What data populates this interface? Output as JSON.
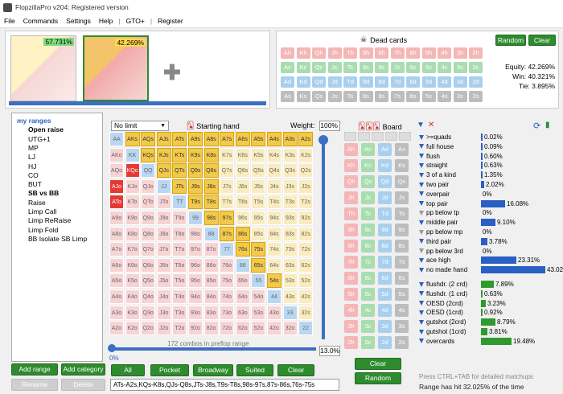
{
  "window": {
    "title": "FlopzillaPro v204: Registered version"
  },
  "menu": [
    "File",
    "Commands",
    "Settings",
    "Help",
    "|",
    "GTO+",
    "|",
    "Register"
  ],
  "top": {
    "range1_pct": "57.731%",
    "range2_pct": "42.269%"
  },
  "dead": {
    "title": "Dead cards",
    "random": "Random",
    "clear": "Clear",
    "rows": [
      [
        "Ah",
        "Kh",
        "Qh",
        "Jh",
        "Th",
        "9h",
        "8h",
        "7h",
        "6h",
        "5h",
        "4h",
        "3h",
        "2h"
      ],
      [
        "Ac",
        "Kc",
        "Qc",
        "Jc",
        "Tc",
        "9c",
        "8c",
        "7c",
        "6c",
        "5c",
        "4c",
        "3c",
        "2c"
      ],
      [
        "Ad",
        "Kd",
        "Qd",
        "Jd",
        "Td",
        "9d",
        "8d",
        "7d",
        "6d",
        "5d",
        "4d",
        "3d",
        "2d"
      ],
      [
        "As",
        "Ks",
        "Qs",
        "Js",
        "Ts",
        "9s",
        "8s",
        "7s",
        "6s",
        "5s",
        "4s",
        "3s",
        "2s"
      ]
    ],
    "equity": "Equity: 42.269%",
    "win": "Win: 40.321%",
    "tie": "Tie: 3.895%"
  },
  "ranges": {
    "items": [
      "my ranges",
      "Open raise",
      "UTG+1",
      "MP",
      "LJ",
      "HJ",
      "CO",
      "BUT",
      "SB vs BB",
      "Raise",
      "Limp Call",
      "Limp ReRaise",
      "Limp Fold",
      "BB Isolate SB Limp"
    ]
  },
  "controls": {
    "limit": "No limit",
    "starting_hand": "Starting hand",
    "weight_label": "Weight:",
    "weight": "100%",
    "board": "Board",
    "combos": "172 combos in preflop range",
    "slider_pct": "0%",
    "range_pct": "13.0%"
  },
  "buttons": {
    "add_range": "Add range",
    "add_category": "Add category",
    "rename": "Rename",
    "delete": "Delete",
    "all": "All",
    "pocket": "Pocket",
    "broadway": "Broadway",
    "suited": "Suited",
    "clear": "Clear",
    "board_clear": "Clear",
    "board_random": "Random"
  },
  "range_text": "ATs-A2s,KQs-K8s,QJs-Q8s,JTs-J8s,T9s-T8s,98s-97s,87s-86s,76s-75s",
  "stats": [
    {
      "label": ">=quads",
      "val": "0.02%",
      "w": 1,
      "c": "blue"
    },
    {
      "label": "full house",
      "val": "0.09%",
      "w": 1,
      "c": "blue"
    },
    {
      "label": "flush",
      "val": "0.60%",
      "w": 1,
      "c": "blue"
    },
    {
      "label": "straight",
      "val": "0.63%",
      "w": 1,
      "c": "blue"
    },
    {
      "label": "3 of a kind",
      "val": "1.35%",
      "w": 1,
      "c": "blue"
    },
    {
      "label": "two pair",
      "val": "2.02%",
      "w": 2,
      "c": "blue"
    },
    {
      "label": "overpair",
      "val": "0%",
      "w": 0,
      "c": "blue"
    },
    {
      "label": "top pair",
      "val": "16.08%",
      "w": 15,
      "c": "blue"
    },
    {
      "label": "pp below tp",
      "val": "0%",
      "w": 0,
      "c": "grey"
    },
    {
      "label": "middle pair",
      "val": "9.10%",
      "w": 9,
      "c": "blue"
    },
    {
      "label": "pp below mp",
      "val": "0%",
      "w": 0,
      "c": "grey"
    },
    {
      "label": "third pair",
      "val": "3.78%",
      "w": 4,
      "c": "blue"
    },
    {
      "label": "pp below 3rd",
      "val": "0%",
      "w": 0,
      "c": "grey"
    },
    {
      "label": "ace high",
      "val": "23.31%",
      "w": 22,
      "c": "blue"
    },
    {
      "label": "no made hand",
      "val": "43.02%",
      "w": 40,
      "c": "blue"
    },
    {
      "label": "flushdr. (2 crd)",
      "val": "7.89%",
      "w": 8,
      "c": "green"
    },
    {
      "label": "flushdr. (1 crd)",
      "val": "0.63%",
      "w": 1,
      "c": "green"
    },
    {
      "label": "OESD (2crd)",
      "val": "3.23%",
      "w": 3,
      "c": "green"
    },
    {
      "label": "OESD (1crd)",
      "val": "0.92%",
      "w": 1,
      "c": "green"
    },
    {
      "label": "gutshot (2crd)",
      "val": "8.79%",
      "w": 9,
      "c": "green"
    },
    {
      "label": "gutshot (1crd)",
      "val": "3.81%",
      "w": 4,
      "c": "green"
    },
    {
      "label": "overcards",
      "val": "19.48%",
      "w": 19,
      "c": "green"
    }
  ],
  "footer": {
    "hint": "Press CTRL+TAB for detailed matchups",
    "hit": "Range has hit 32.025% of the time"
  }
}
